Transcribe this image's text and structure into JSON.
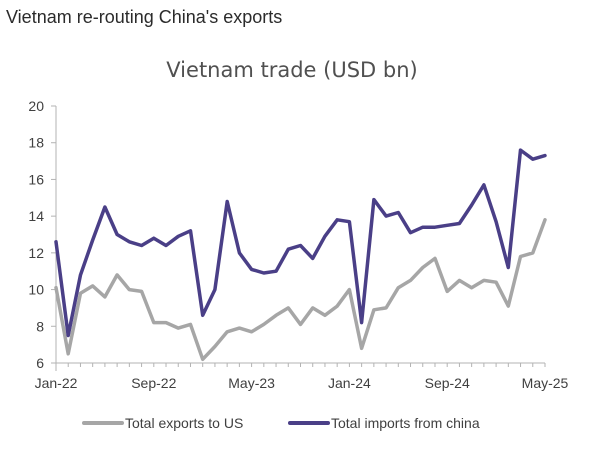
{
  "banner": {
    "title": "Vietnam re-routing China's exports"
  },
  "colors": {
    "exports_us": "#a6a6a6",
    "imports_china": "#4a3f87",
    "axis": "#b3b3b3",
    "text": "#404040"
  },
  "chart_data": {
    "type": "line",
    "title": "Vietnam trade (USD bn)",
    "xlabel": "",
    "ylabel": "",
    "ylim": [
      6,
      20
    ],
    "yticks": [
      6,
      8,
      10,
      12,
      14,
      16,
      18,
      20
    ],
    "grid": false,
    "legend_position": "bottom",
    "x": [
      "Jan-22",
      "Feb-22",
      "Mar-22",
      "Apr-22",
      "May-22",
      "Jun-22",
      "Jul-22",
      "Aug-22",
      "Sep-22",
      "Oct-22",
      "Nov-22",
      "Dec-22",
      "Jan-23",
      "Feb-23",
      "Mar-23",
      "Apr-23",
      "May-23",
      "Jun-23",
      "Jul-23",
      "Aug-23",
      "Sep-23",
      "Oct-23",
      "Nov-23",
      "Dec-23",
      "Jan-24",
      "Feb-24",
      "Mar-24",
      "Apr-24",
      "May-24",
      "Jun-24",
      "Jul-24",
      "Aug-24",
      "Sep-24",
      "Oct-24",
      "Nov-24",
      "Dec-24",
      "Jan-25",
      "Feb-25",
      "Mar-25",
      "Apr-25",
      "May-25"
    ],
    "xticks": [
      {
        "index": 0,
        "label": "Jan-22"
      },
      {
        "index": 8,
        "label": "Sep-22"
      },
      {
        "index": 16,
        "label": "May-23"
      },
      {
        "index": 24,
        "label": "Jan-24"
      },
      {
        "index": 32,
        "label": "Sep-24"
      },
      {
        "index": 40,
        "label": "May-25"
      }
    ],
    "series": [
      {
        "name": "Total exports to US",
        "values": [
          10.1,
          6.5,
          9.8,
          10.2,
          9.6,
          10.8,
          10.0,
          9.9,
          8.2,
          8.2,
          7.9,
          8.1,
          6.2,
          6.9,
          7.7,
          7.9,
          7.7,
          8.1,
          8.6,
          9.0,
          8.1,
          9.0,
          8.6,
          9.1,
          10.0,
          6.8,
          8.9,
          9.0,
          10.1,
          10.5,
          11.2,
          11.7,
          9.9,
          10.5,
          10.1,
          10.5,
          10.4,
          9.1,
          11.8,
          12.0,
          13.8
        ]
      },
      {
        "name": "Total imports from china",
        "values": [
          12.6,
          7.5,
          10.8,
          12.7,
          14.5,
          13.0,
          12.6,
          12.4,
          12.8,
          12.4,
          12.9,
          13.2,
          8.6,
          10.0,
          14.8,
          12.0,
          11.1,
          10.9,
          11.0,
          12.2,
          12.4,
          11.7,
          12.9,
          13.8,
          13.7,
          8.2,
          14.9,
          14.0,
          14.2,
          13.1,
          13.4,
          13.4,
          13.5,
          13.6,
          14.6,
          15.7,
          13.7,
          11.2,
          17.6,
          17.1,
          17.3
        ]
      }
    ]
  }
}
